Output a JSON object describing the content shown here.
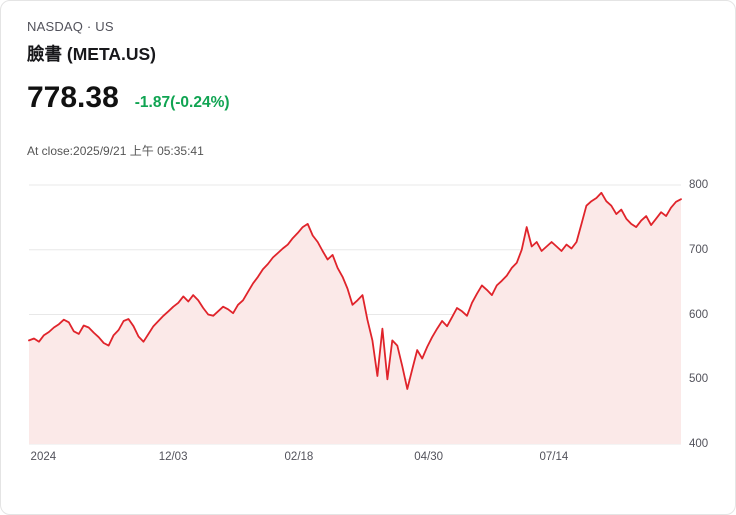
{
  "header": {
    "exchange": "NASDAQ · US",
    "title": "臉書 (META.US)"
  },
  "quote": {
    "price": "778.38",
    "change": "-1.87(-0.24%)",
    "change_color": "#10a452",
    "at_close": "At close:2025/9/21 上午 05:35:41"
  },
  "chart_data": {
    "type": "area",
    "title": "META.US price history",
    "ylim": [
      400,
      800
    ],
    "y_ticks": [
      400,
      500,
      600,
      700,
      800
    ],
    "x_ticks": [
      {
        "label": "2024",
        "pos": 0.022
      },
      {
        "label": "12/03",
        "pos": 0.221
      },
      {
        "label": "02/18",
        "pos": 0.414
      },
      {
        "label": "04/30",
        "pos": 0.613
      },
      {
        "label": "07/14",
        "pos": 0.805
      }
    ],
    "line_color": "#e0242b",
    "fill_color": "#fbe9e8",
    "grid_color": "#e8e8e8",
    "legend": "none",
    "grid": "horizontal",
    "series": [
      {
        "name": "META.US",
        "values": [
          560,
          563,
          558,
          568,
          573,
          580,
          585,
          592,
          588,
          574,
          570,
          583,
          580,
          572,
          565,
          556,
          552,
          568,
          576,
          590,
          593,
          582,
          566,
          558,
          570,
          582,
          590,
          598,
          605,
          612,
          618,
          628,
          620,
          630,
          622,
          610,
          600,
          598,
          605,
          612,
          608,
          602,
          615,
          622,
          635,
          648,
          658,
          670,
          678,
          688,
          695,
          702,
          708,
          718,
          726,
          735,
          740,
          722,
          712,
          698,
          685,
          692,
          672,
          658,
          640,
          615,
          622,
          630,
          592,
          560,
          505,
          578,
          500,
          560,
          552,
          520,
          485,
          515,
          545,
          532,
          550,
          565,
          578,
          590,
          582,
          596,
          610,
          605,
          598,
          618,
          632,
          645,
          638,
          630,
          645,
          652,
          660,
          672,
          680,
          700,
          735,
          705,
          712,
          698,
          705,
          712,
          705,
          698,
          708,
          702,
          712,
          740,
          768,
          775,
          780,
          788,
          775,
          768,
          755,
          762,
          748,
          740,
          735,
          745,
          752,
          738,
          748,
          758,
          752,
          765,
          774,
          778
        ]
      }
    ]
  }
}
